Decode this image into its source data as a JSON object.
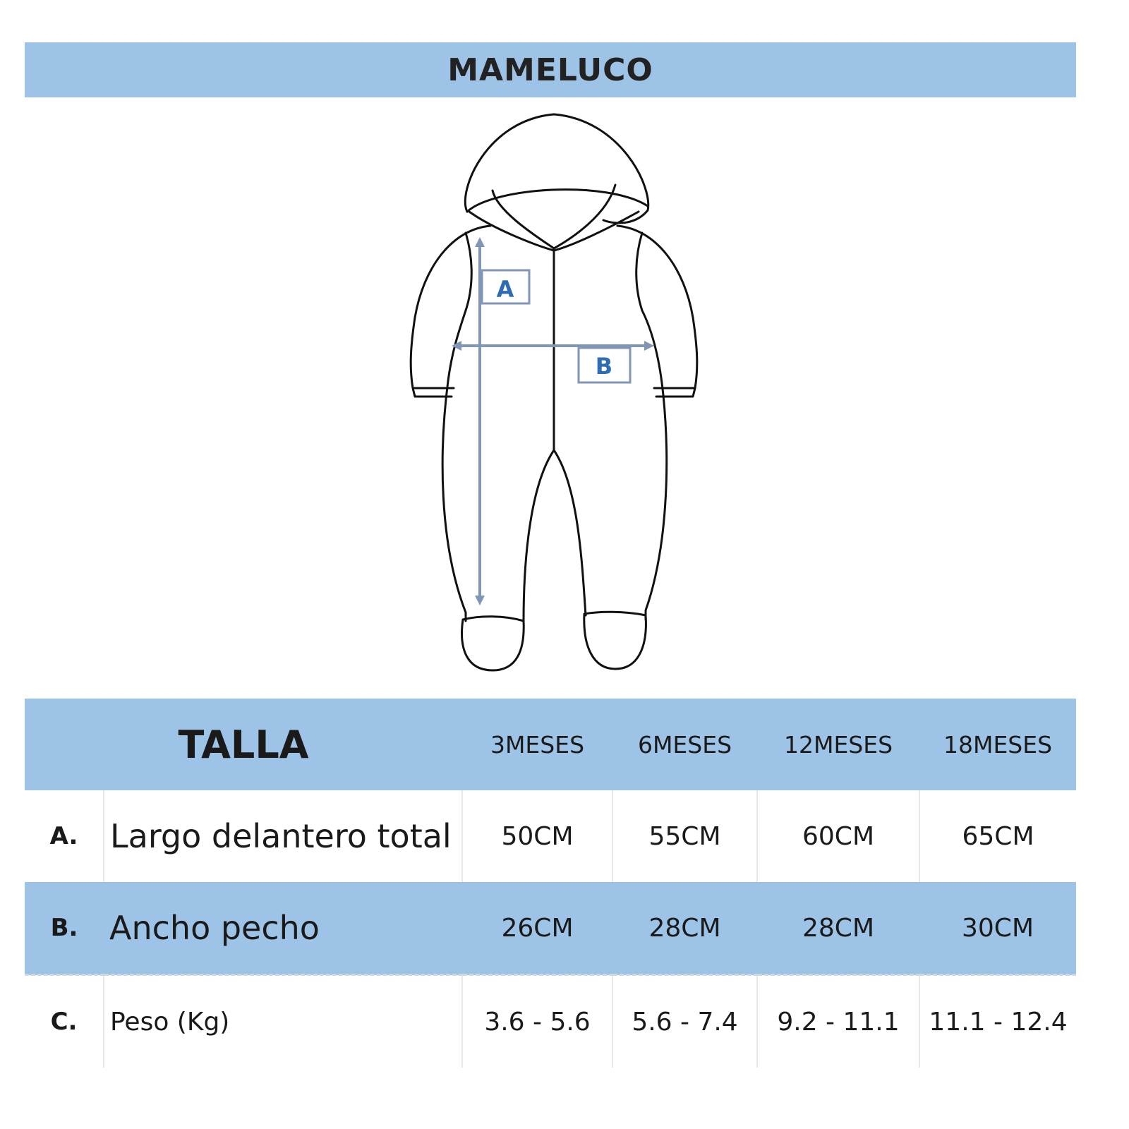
{
  "title": "MAMELUCO",
  "diagram": {
    "marker_a": "A",
    "marker_b": "B",
    "arrow_color": "#8096b4",
    "label_color": "#2e6db4"
  },
  "table": {
    "header": {
      "label": "TALLA",
      "sizes": [
        "3MESES",
        "6MESES",
        "12MESES",
        "18MESES"
      ]
    },
    "rows": [
      {
        "letter": "A.",
        "name": "Largo delantero total",
        "values": [
          "50CM",
          "55CM",
          "60CM",
          "65CM"
        ]
      },
      {
        "letter": "B.",
        "name": "Ancho pecho",
        "values": [
          "26CM",
          "28CM",
          "28CM",
          "30CM"
        ]
      },
      {
        "letter": "C.",
        "name": "Peso (Kg)",
        "values": [
          "3.6 - 5.6",
          "5.6 - 7.4",
          "9.2 - 11.1",
          "11.1 - 12.4"
        ]
      }
    ]
  },
  "colors": {
    "header_bg": "#9dc3e6",
    "text": "#1a1a1a"
  }
}
